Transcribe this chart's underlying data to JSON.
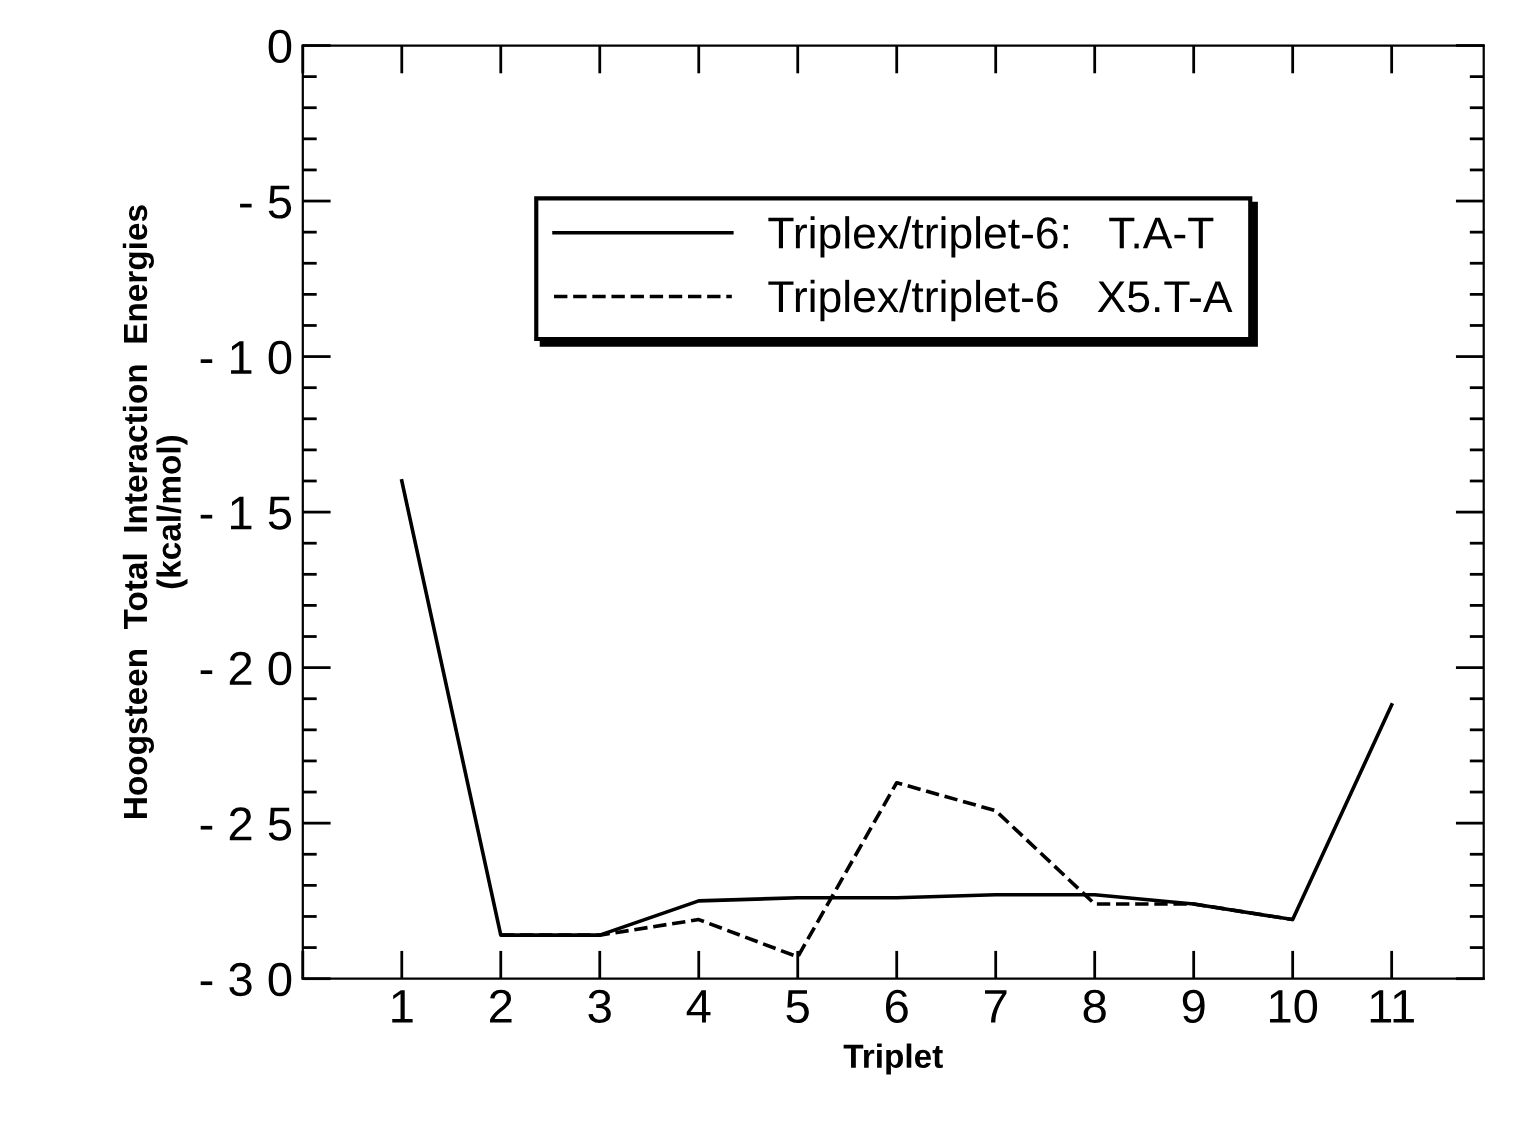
{
  "chart_data": {
    "type": "line",
    "xlabel": "Triplet",
    "ylabel": "Hoogsteen  Total  Interaction  Energies\n(kcal/mol)",
    "categories": [
      "1",
      "2",
      "3",
      "4",
      "5",
      "6",
      "7",
      "8",
      "9",
      "10",
      "11"
    ],
    "series": [
      {
        "name": "Triplex/triplet-6:   T.A-T",
        "color": "#000000",
        "line_style": "solid",
        "values": [
          -14.0,
          -28.6,
          -28.6,
          -27.5,
          -27.4,
          -27.4,
          -27.3,
          -27.3,
          -27.6,
          -28.1,
          -21.2
        ]
      },
      {
        "name": "Triplex/triplet-6   X5.T-A",
        "color": "#000000",
        "line_style": "dashed",
        "values": [
          null,
          -28.6,
          -28.6,
          -28.1,
          -29.3,
          -23.7,
          -24.6,
          -27.6,
          -27.6,
          -28.1,
          null
        ]
      }
    ],
    "ylim": [
      -30,
      0
    ],
    "yticks": [
      {
        "value": 0,
        "label": "0"
      },
      {
        "value": -5,
        "label": "- 5"
      },
      {
        "value": -10,
        "label": "- 1 0"
      },
      {
        "value": -15,
        "label": "- 1 5"
      },
      {
        "value": -20,
        "label": "- 2 0"
      },
      {
        "value": -25,
        "label": "- 2 5"
      },
      {
        "value": -30,
        "label": "- 3 0"
      }
    ],
    "grid": false,
    "legend": "top",
    "marker": "none"
  }
}
